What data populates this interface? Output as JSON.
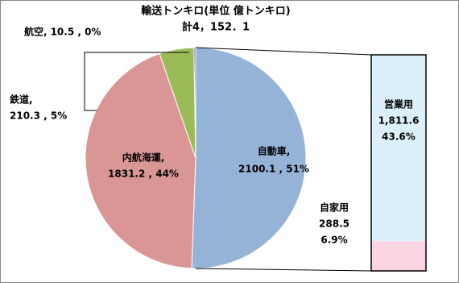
{
  "chart_data": {
    "type": "pie-of-bar",
    "title": "輸送トンキロ(単位 億トンキロ)",
    "subtitle": "計4，152．1",
    "categories": [
      "自動車,",
      "内航海運,",
      "鉄道,",
      "航空,"
    ],
    "values": [
      2100.1,
      1831.2,
      210.3,
      10.5
    ],
    "value_labels": [
      "2100.1 , 51%",
      "1831.2 , 44%",
      "210.3 , 5%",
      "10.5 , 0%"
    ],
    "colors": [
      "#95b3d7",
      "#d99694",
      "#9bbb59",
      "#8064a2"
    ],
    "breakdown": {
      "categories": [
        "営業用",
        "自家用"
      ],
      "values": [
        1811.6,
        288.5
      ],
      "value_labels": [
        "1,811.6",
        "288.5"
      ],
      "shares": [
        43.6,
        6.9
      ],
      "share_labels": [
        "43.6%",
        "6.9%"
      ],
      "colors": [
        "#dcf0fb",
        "#fcd5e5"
      ]
    }
  }
}
